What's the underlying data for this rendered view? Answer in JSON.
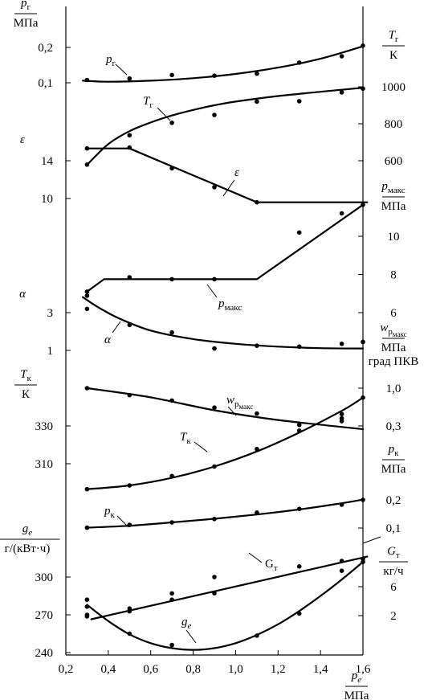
{
  "chart_data": {
    "type": "line",
    "x": {
      "label_sym": "p",
      "label_sub": "e",
      "unit": "МПа",
      "range": [
        0.2,
        1.6
      ],
      "ticks": [
        "0,2",
        "0,4",
        "0,6",
        "0,8",
        "1,0",
        "1,2",
        "1,4",
        "1,6"
      ],
      "tick_values": [
        0.2,
        0.4,
        0.6,
        0.8,
        1.0,
        1.2,
        1.4,
        1.6
      ]
    },
    "left_axes": [
      {
        "key": "pg",
        "sym": "p",
        "sub": "г",
        "unit": "МПа",
        "ticks": [
          "0,2",
          "0,1"
        ],
        "tick_values": [
          0.2,
          0.1
        ]
      },
      {
        "key": "eps",
        "sym": "ε",
        "sub": "",
        "unit": "",
        "ticks": [
          "14",
          "10"
        ],
        "tick_values": [
          14,
          10
        ]
      },
      {
        "key": "alpha",
        "sym": "α",
        "sub": "",
        "unit": "",
        "ticks": [
          "3",
          "1"
        ],
        "tick_values": [
          3,
          1
        ]
      },
      {
        "key": "Tk",
        "sym": "T",
        "sub": "к",
        "unit": "К",
        "ticks": [
          "330",
          "310"
        ],
        "tick_values": [
          330,
          310
        ]
      },
      {
        "key": "ge",
        "sym": "g",
        "sub": "e",
        "unit": "г/(кВт·ч)",
        "ticks": [
          "300",
          "270",
          "240"
        ],
        "tick_values": [
          300,
          270,
          240
        ]
      }
    ],
    "right_axes": [
      {
        "key": "Tg",
        "sym": "T",
        "sub": "г",
        "unit": "К",
        "ticks": [
          "1000",
          "800",
          "600"
        ],
        "tick_values": [
          1000,
          800,
          600
        ]
      },
      {
        "key": "pmax",
        "sym": "p",
        "sub": "макс",
        "unit": "МПа",
        "ticks": [
          "10",
          "8",
          "6"
        ],
        "tick_values": [
          10,
          8,
          6
        ]
      },
      {
        "key": "wpmax",
        "sym": "w",
        "sub": "p",
        "subsub": "макс",
        "unit": "МПа",
        "unit2": "град ПКВ",
        "ticks": [
          "1,0",
          "0,3"
        ],
        "tick_values": [
          1.0,
          0.3
        ]
      },
      {
        "key": "pk",
        "sym": "p",
        "sub": "к",
        "unit": "МПа",
        "ticks": [
          "0,2",
          "0,1"
        ],
        "tick_values": [
          0.2,
          0.1
        ]
      },
      {
        "key": "Gt",
        "sym": "G",
        "sub": "т",
        "unit": "кг/ч",
        "ticks": [
          "6",
          "2"
        ],
        "tick_values": [
          6,
          2
        ]
      }
    ],
    "series": [
      {
        "key": "pg",
        "name": "pг",
        "sym": "p",
        "sub": "г",
        "italic": true,
        "curve": {
          "x": [
            0.28,
            0.4,
            0.6,
            0.8,
            1.0,
            1.2,
            1.4,
            1.6
          ],
          "y": [
            0.106,
            0.103,
            0.106,
            0.113,
            0.125,
            0.143,
            0.168,
            0.203
          ]
        },
        "points": {
          "x": [
            0.3,
            0.5,
            0.7,
            0.9,
            1.1,
            1.3,
            1.5,
            1.6
          ],
          "y": [
            0.108,
            0.112,
            0.122,
            0.12,
            0.126,
            0.157,
            0.175,
            0.205
          ]
        }
      },
      {
        "key": "Tg",
        "name": "Tг",
        "sym": "T",
        "sub": "г",
        "italic": true,
        "curve": {
          "x": [
            0.3,
            0.4,
            0.5,
            0.6,
            0.7,
            0.8,
            0.9,
            1.0,
            1.2,
            1.4,
            1.6
          ],
          "y": [
            578,
            690,
            760,
            807,
            845,
            875,
            900,
            920,
            950,
            973,
            995
          ]
        },
        "points": {
          "x": [
            0.3,
            0.5,
            0.7,
            0.9,
            1.1,
            1.3,
            1.5,
            1.6
          ],
          "y": [
            579,
            738,
            805,
            848,
            920,
            922,
            970,
            990
          ]
        }
      },
      {
        "key": "eps",
        "name": "ε",
        "sym": "ε",
        "sub": "",
        "italic": true,
        "curve": {
          "x": [
            0.3,
            0.5,
            1.1,
            1.62
          ],
          "y": [
            15.3,
            15.3,
            9.6,
            9.6
          ]
        },
        "points": {
          "x": [
            0.3,
            0.5,
            0.7,
            0.9,
            1.1
          ],
          "y": [
            15.3,
            15.4,
            13.2,
            11.2,
            9.6
          ]
        }
      },
      {
        "key": "pmax",
        "name": "pмакс",
        "sym": "p",
        "sub": "макс",
        "italic": true,
        "curve": {
          "x": [
            0.3,
            0.38,
            1.1,
            1.6
          ],
          "y": [
            7.1,
            7.75,
            7.75,
            11.65
          ]
        },
        "points": {
          "x": [
            0.3,
            0.5,
            0.7,
            0.9,
            1.3,
            1.5,
            1.6
          ],
          "y": [
            7.1,
            7.85,
            7.75,
            7.75,
            10.2,
            11.2,
            11.65
          ]
        }
      },
      {
        "key": "alpha",
        "name": "α",
        "sym": "α",
        "sub": "",
        "italic": true,
        "curve": {
          "x": [
            0.28,
            0.35,
            0.45,
            0.6,
            0.8,
            1.0,
            1.2,
            1.4,
            1.6
          ],
          "y": [
            3.82,
            3.3,
            2.7,
            2.05,
            1.6,
            1.35,
            1.2,
            1.12,
            1.1
          ]
        },
        "points": {
          "x": [
            0.3,
            0.3,
            0.5,
            0.7,
            0.9,
            1.1,
            1.3,
            1.5,
            1.6
          ],
          "y": [
            3.9,
            3.2,
            2.35,
            1.95,
            1.1,
            1.25,
            1.2,
            1.35,
            1.45
          ]
        }
      },
      {
        "key": "wpmax",
        "name": "wpмакс",
        "sym": "w",
        "sub": "p",
        "subsub": "макс",
        "italic": true,
        "curve": {
          "x": [
            0.3,
            0.6,
            0.9,
            1.2,
            1.6
          ],
          "y": [
            1.0,
            0.83,
            0.59,
            0.41,
            0.24
          ]
        },
        "points": {
          "x": [
            0.3,
            0.5,
            0.7,
            0.9,
            1.1,
            1.3,
            1.5,
            1.5
          ],
          "y": [
            1.0,
            0.87,
            0.77,
            0.64,
            0.53,
            0.32,
            0.52,
            0.39
          ]
        }
      },
      {
        "key": "Tk",
        "name": "Tк",
        "sym": "T",
        "sub": "к",
        "italic": true,
        "curve": {
          "x": [
            0.3,
            0.5,
            0.7,
            0.9,
            1.1,
            1.3,
            1.5,
            1.6
          ],
          "y": [
            296.5,
            298.5,
            302.5,
            308.5,
            316.5,
            326.5,
            338,
            345
          ]
        },
        "points": {
          "x": [
            0.3,
            0.5,
            0.7,
            0.9,
            1.1,
            1.3,
            1.5,
            1.6
          ],
          "y": [
            296.5,
            298.5,
            303.5,
            308.5,
            317.8,
            327.5,
            334,
            345
          ]
        }
      },
      {
        "key": "pk",
        "name": "pк",
        "sym": "p",
        "sub": "к",
        "italic": true,
        "curve": {
          "x": [
            0.3,
            0.5,
            0.7,
            0.9,
            1.1,
            1.3,
            1.5,
            1.6
          ],
          "y": [
            0.101,
            0.108,
            0.12,
            0.133,
            0.148,
            0.166,
            0.188,
            0.201
          ]
        },
        "points": {
          "x": [
            0.3,
            0.5,
            0.7,
            0.9,
            1.1,
            1.3,
            1.5,
            1.6
          ],
          "y": [
            0.101,
            0.111,
            0.12,
            0.132,
            0.155,
            0.168,
            0.183,
            0.2
          ]
        }
      },
      {
        "key": "Gt",
        "name": "Gт",
        "sym": "G",
        "sub": "т",
        "italic": false,
        "curve": {
          "x": [
            0.32,
            1.62
          ],
          "y": [
            1.5,
            10.15
          ]
        },
        "points": {
          "x": [
            0.3,
            0.3,
            0.5,
            0.7,
            0.9,
            1.3,
            1.5,
            1.6
          ],
          "y": [
            3.25,
            1.9,
            2.6,
            4.2,
            5.1,
            8.8,
            9.55,
            9.85
          ]
        }
      },
      {
        "key": "ge",
        "name": "ge",
        "sym": "g",
        "sub": "e",
        "italic": true,
        "curve": {
          "x": [
            0.3,
            0.4,
            0.5,
            0.6,
            0.7,
            0.8,
            0.9,
            1.0,
            1.1,
            1.2,
            1.3,
            1.4,
            1.5,
            1.6
          ],
          "y": [
            278,
            265,
            254.5,
            247.5,
            243.5,
            242.2,
            243.5,
            247.5,
            254,
            262.5,
            273,
            285,
            298,
            312
          ]
        },
        "points": {
          "x": [
            0.3,
            0.3,
            0.5,
            0.5,
            0.7,
            0.7,
            0.9,
            1.1,
            1.3,
            1.5,
            1.6
          ],
          "y": [
            282,
            270,
            275,
            255,
            287,
            246,
            300,
            253.5,
            271,
            305,
            312
          ]
        }
      }
    ]
  }
}
